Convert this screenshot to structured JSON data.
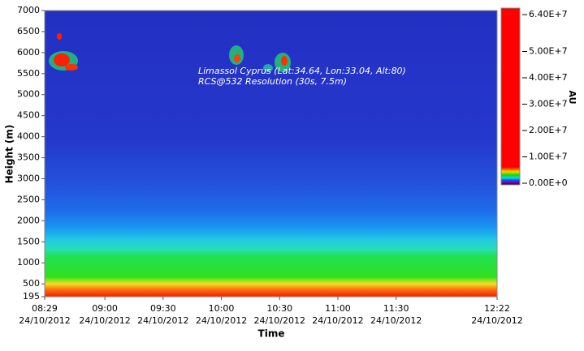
{
  "chart_data": {
    "type": "heatmap",
    "xlabel": "Time",
    "ylabel": "Height (m)",
    "annotations": [
      "Limassol Cyprus (Lat:34.64, Lon:33.04, Alt:80)",
      "RCS@532 Resolution (30s, 7.5m)"
    ],
    "xlim": [
      "2012-10-24 08:29",
      "2012-10-24 12:22"
    ],
    "xticks": [
      {
        "value": "2012-10-24 08:29",
        "label": "08:29\n24/10/2012"
      },
      {
        "value": "2012-10-24 09:00",
        "label": "09:00\n24/10/2012"
      },
      {
        "value": "2012-10-24 09:30",
        "label": "09:30\n24/10/2012"
      },
      {
        "value": "2012-10-24 10:00",
        "label": "10:00\n24/10/2012"
      },
      {
        "value": "2012-10-24 10:30",
        "label": "10:30\n24/10/2012"
      },
      {
        "value": "2012-10-24 11:00",
        "label": "11:00\n24/10/2012"
      },
      {
        "value": "2012-10-24 11:30",
        "label": "11:30\n24/10/2012"
      },
      {
        "value": "2012-10-24 12:22",
        "label": "12:22\n24/10/2012"
      }
    ],
    "ylim": [
      195,
      7000
    ],
    "yticks": [
      195,
      500,
      1000,
      1500,
      2000,
      2500,
      3000,
      3500,
      4000,
      4500,
      5000,
      5500,
      6000,
      6500,
      7000
    ],
    "colorbar": {
      "label": "AU",
      "lim": [
        0,
        64000000
      ],
      "ticks": [
        {
          "value": 64000000,
          "label": "6.40E+7"
        },
        {
          "value": 50000000,
          "label": "5.00E+7"
        },
        {
          "value": 40000000,
          "label": "4.00E+7"
        },
        {
          "value": 30000000,
          "label": "3.00E+7"
        },
        {
          "value": 20000000,
          "label": "2.00E+7"
        },
        {
          "value": 10000000,
          "label": "1.00E+7"
        },
        {
          "value": 0,
          "label": "0.00E+0"
        }
      ]
    }
  }
}
